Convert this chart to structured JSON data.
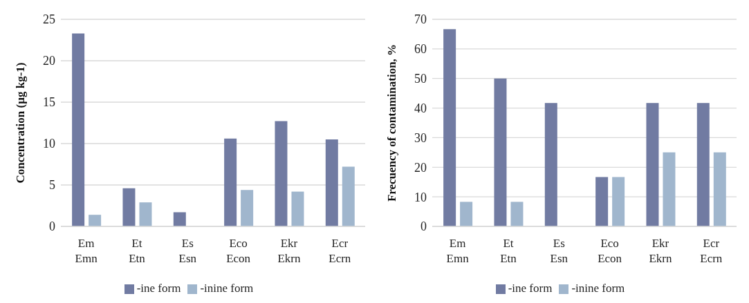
{
  "chart_data": [
    {
      "type": "bar",
      "ylabel": "Concentration (µg kg-1)",
      "categories": [
        "Em\nEmn",
        "Et\nEtn",
        "Es\nEsn",
        "Eco\nEcon",
        "Ekr\nEkrn",
        "Ecr\nEcrn"
      ],
      "series": [
        {
          "name": "-ine form",
          "color": "#717ba2",
          "values": [
            23.3,
            4.6,
            1.7,
            10.6,
            12.7,
            10.5
          ]
        },
        {
          "name": "-inine form",
          "color": "#a0b6cd",
          "values": [
            1.4,
            2.9,
            null,
            4.4,
            4.2,
            7.2
          ]
        }
      ],
      "ylim": [
        0,
        25
      ],
      "yticks": [
        0,
        5,
        10,
        15,
        20,
        25
      ],
      "grid": "y",
      "legend": "bottom"
    },
    {
      "type": "bar",
      "ylabel": "Frecuency of contamination, %",
      "categories": [
        "Em\nEmn",
        "Et\nEtn",
        "Es\nEsn",
        "Eco\nEcon",
        "Ekr\nEkrn",
        "Ecr\nEcrn"
      ],
      "series": [
        {
          "name": "-ine form",
          "color": "#717ba2",
          "values": [
            66.7,
            50,
            41.7,
            16.7,
            41.7,
            41.7
          ]
        },
        {
          "name": "-inine form",
          "color": "#a0b6cd",
          "values": [
            8.3,
            8.3,
            null,
            16.7,
            25,
            25
          ]
        }
      ],
      "ylim": [
        0,
        70
      ],
      "yticks": [
        0,
        10,
        20,
        30,
        40,
        50,
        60,
        70
      ],
      "grid": "y",
      "legend": "bottom"
    }
  ]
}
